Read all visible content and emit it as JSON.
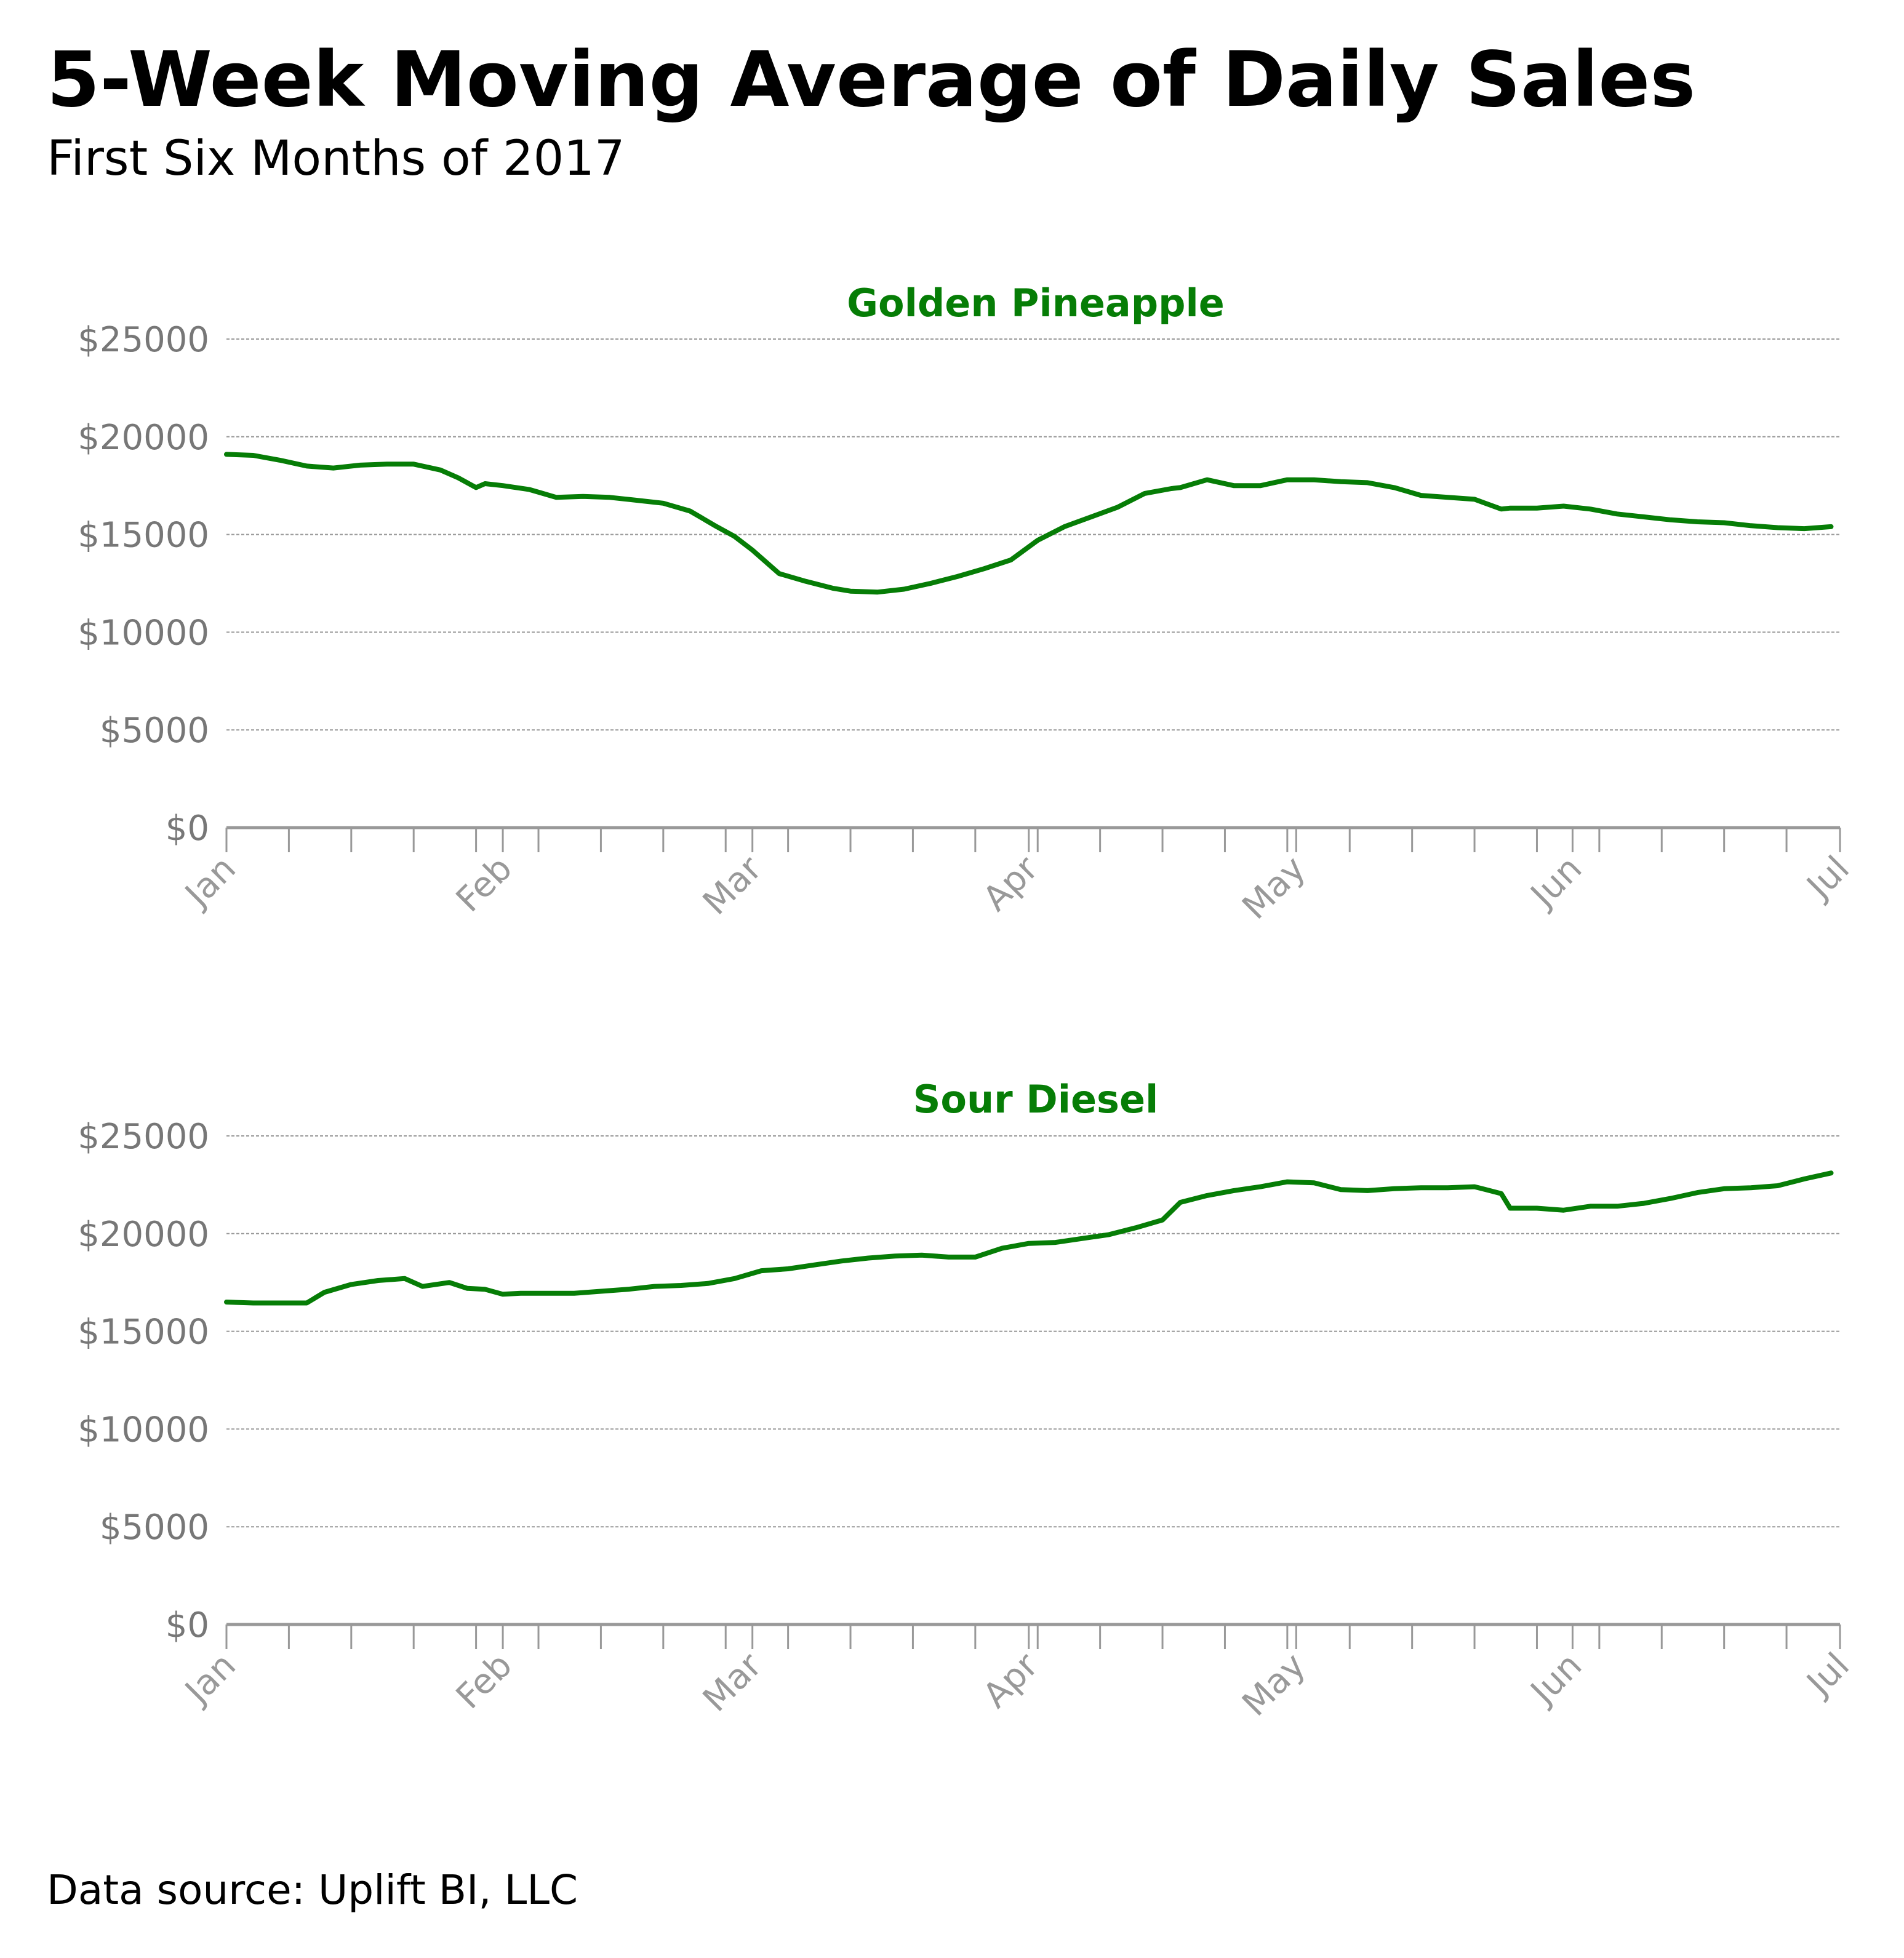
{
  "title": "5-Week Moving Average of Daily Sales",
  "subtitle": "First Six Months of 2017",
  "source": "Data source: Uplift BI, LLC",
  "colors": {
    "line": "#067d06",
    "panel_title": "#067d06",
    "axis": "#999999",
    "grid": "#999999",
    "tick_text": "#777777"
  },
  "chart_data": [
    {
      "type": "line",
      "title": "Golden Pineapple",
      "y_tick_labels": [
        "$0",
        "$5000",
        "$10000",
        "$15000",
        "$20000",
        "$25000"
      ],
      "y_ticks": [
        0,
        5000,
        10000,
        15000,
        20000,
        25000
      ],
      "x_tick_labels": [
        "Jan",
        "Feb",
        "Mar",
        "Apr",
        "May",
        "Jun",
        "Jul"
      ],
      "x_ticks": [
        "2017-01-01",
        "2017-02-01",
        "2017-03-01",
        "2017-04-01",
        "2017-05-01",
        "2017-06-01",
        "2017-07-01"
      ],
      "x_minor_ticks": [
        "2017-01-08",
        "2017-01-15",
        "2017-01-22",
        "2017-01-29",
        "2017-02-05",
        "2017-02-12",
        "2017-02-19",
        "2017-02-26",
        "2017-03-05",
        "2017-03-12",
        "2017-03-19",
        "2017-03-26",
        "2017-04-02",
        "2017-04-09",
        "2017-04-16",
        "2017-04-23",
        "2017-04-30",
        "2017-05-07",
        "2017-05-14",
        "2017-05-21",
        "2017-05-28",
        "2017-06-04",
        "2017-06-11",
        "2017-06-18",
        "2017-06-25"
      ],
      "xlim": [
        "2017-01-01",
        "2017-07-01"
      ],
      "ylim": [
        0,
        25000
      ],
      "grid": true,
      "x": [
        "2017-01-01",
        "2017-01-04",
        "2017-01-07",
        "2017-01-10",
        "2017-01-13",
        "2017-01-16",
        "2017-01-19",
        "2017-01-22",
        "2017-01-25",
        "2017-01-27",
        "2017-01-29",
        "2017-01-30",
        "2017-02-01",
        "2017-02-04",
        "2017-02-07",
        "2017-02-10",
        "2017-02-13",
        "2017-02-16",
        "2017-02-19",
        "2017-02-22",
        "2017-02-25",
        "2017-02-27",
        "2017-03-01",
        "2017-03-04",
        "2017-03-07",
        "2017-03-10",
        "2017-03-12",
        "2017-03-15",
        "2017-03-18",
        "2017-03-21",
        "2017-03-24",
        "2017-03-27",
        "2017-03-30",
        "2017-04-02",
        "2017-04-05",
        "2017-04-08",
        "2017-04-11",
        "2017-04-14",
        "2017-04-17",
        "2017-04-18",
        "2017-04-21",
        "2017-04-24",
        "2017-04-27",
        "2017-04-30",
        "2017-05-03",
        "2017-05-06",
        "2017-05-09",
        "2017-05-12",
        "2017-05-15",
        "2017-05-18",
        "2017-05-21",
        "2017-05-24",
        "2017-05-25",
        "2017-05-28",
        "2017-05-31",
        "2017-06-03",
        "2017-06-06",
        "2017-06-09",
        "2017-06-12",
        "2017-06-15",
        "2017-06-18",
        "2017-06-21",
        "2017-06-24",
        "2017-06-27",
        "2017-06-30"
      ],
      "y": [
        19100,
        19050,
        18800,
        18500,
        18400,
        18550,
        18600,
        18600,
        18300,
        17900,
        17400,
        17600,
        17500,
        17300,
        16900,
        16950,
        16900,
        16750,
        16600,
        16200,
        15400,
        14900,
        14200,
        13000,
        12600,
        12250,
        12100,
        12050,
        12200,
        12500,
        12850,
        13250,
        13700,
        14700,
        15400,
        15900,
        16400,
        17100,
        17350,
        17400,
        17800,
        17500,
        17500,
        17800,
        17800,
        17700,
        17650,
        17400,
        17000,
        16900,
        16800,
        16300,
        16350,
        16350,
        16450,
        16300,
        16050,
        15900,
        15750,
        15650,
        15600,
        15450,
        15350,
        15300,
        15400
      ]
    },
    {
      "type": "line",
      "title": "Sour Diesel",
      "y_tick_labels": [
        "$0",
        "$5000",
        "$10000",
        "$15000",
        "$20000",
        "$25000"
      ],
      "y_ticks": [
        0,
        5000,
        10000,
        15000,
        20000,
        25000
      ],
      "x_tick_labels": [
        "Jan",
        "Feb",
        "Mar",
        "Apr",
        "May",
        "Jun",
        "Jul"
      ],
      "x_ticks": [
        "2017-01-01",
        "2017-02-01",
        "2017-03-01",
        "2017-04-01",
        "2017-05-01",
        "2017-06-01",
        "2017-07-01"
      ],
      "x_minor_ticks": [
        "2017-01-08",
        "2017-01-15",
        "2017-01-22",
        "2017-01-29",
        "2017-02-05",
        "2017-02-12",
        "2017-02-19",
        "2017-02-26",
        "2017-03-05",
        "2017-03-12",
        "2017-03-19",
        "2017-03-26",
        "2017-04-02",
        "2017-04-09",
        "2017-04-16",
        "2017-04-23",
        "2017-04-30",
        "2017-05-07",
        "2017-05-14",
        "2017-05-21",
        "2017-05-28",
        "2017-06-04",
        "2017-06-11",
        "2017-06-18",
        "2017-06-25"
      ],
      "xlim": [
        "2017-01-01",
        "2017-07-01"
      ],
      "ylim": [
        0,
        25000
      ],
      "grid": true,
      "x": [
        "2017-01-01",
        "2017-01-04",
        "2017-01-07",
        "2017-01-10",
        "2017-01-12",
        "2017-01-15",
        "2017-01-18",
        "2017-01-21",
        "2017-01-23",
        "2017-01-26",
        "2017-01-28",
        "2017-01-30",
        "2017-02-01",
        "2017-02-03",
        "2017-02-06",
        "2017-02-09",
        "2017-02-12",
        "2017-02-15",
        "2017-02-18",
        "2017-02-21",
        "2017-02-24",
        "2017-02-27",
        "2017-03-02",
        "2017-03-05",
        "2017-03-08",
        "2017-03-11",
        "2017-03-14",
        "2017-03-17",
        "2017-03-20",
        "2017-03-23",
        "2017-03-26",
        "2017-03-29",
        "2017-04-01",
        "2017-04-04",
        "2017-04-07",
        "2017-04-10",
        "2017-04-13",
        "2017-04-16",
        "2017-04-18",
        "2017-04-21",
        "2017-04-24",
        "2017-04-27",
        "2017-04-30",
        "2017-05-03",
        "2017-05-06",
        "2017-05-09",
        "2017-05-12",
        "2017-05-15",
        "2017-05-18",
        "2017-05-21",
        "2017-05-24",
        "2017-05-25",
        "2017-05-28",
        "2017-05-31",
        "2017-06-03",
        "2017-06-06",
        "2017-06-09",
        "2017-06-12",
        "2017-06-15",
        "2017-06-18",
        "2017-06-21",
        "2017-06-24",
        "2017-06-27",
        "2017-06-30"
      ],
      "y": [
        16500,
        16450,
        16450,
        16450,
        17000,
        17400,
        17600,
        17700,
        17300,
        17500,
        17200,
        17150,
        16900,
        16950,
        16950,
        16950,
        17050,
        17150,
        17300,
        17350,
        17450,
        17700,
        18100,
        18200,
        18400,
        18600,
        18750,
        18850,
        18900,
        18800,
        18800,
        19250,
        19500,
        19550,
        19750,
        19950,
        20300,
        20700,
        21600,
        21950,
        22200,
        22400,
        22650,
        22600,
        22250,
        22200,
        22300,
        22350,
        22350,
        22400,
        22050,
        21300,
        21300,
        21200,
        21400,
        21400,
        21550,
        21800,
        22100,
        22300,
        22350,
        22450,
        22800,
        23100
      ]
    }
  ]
}
